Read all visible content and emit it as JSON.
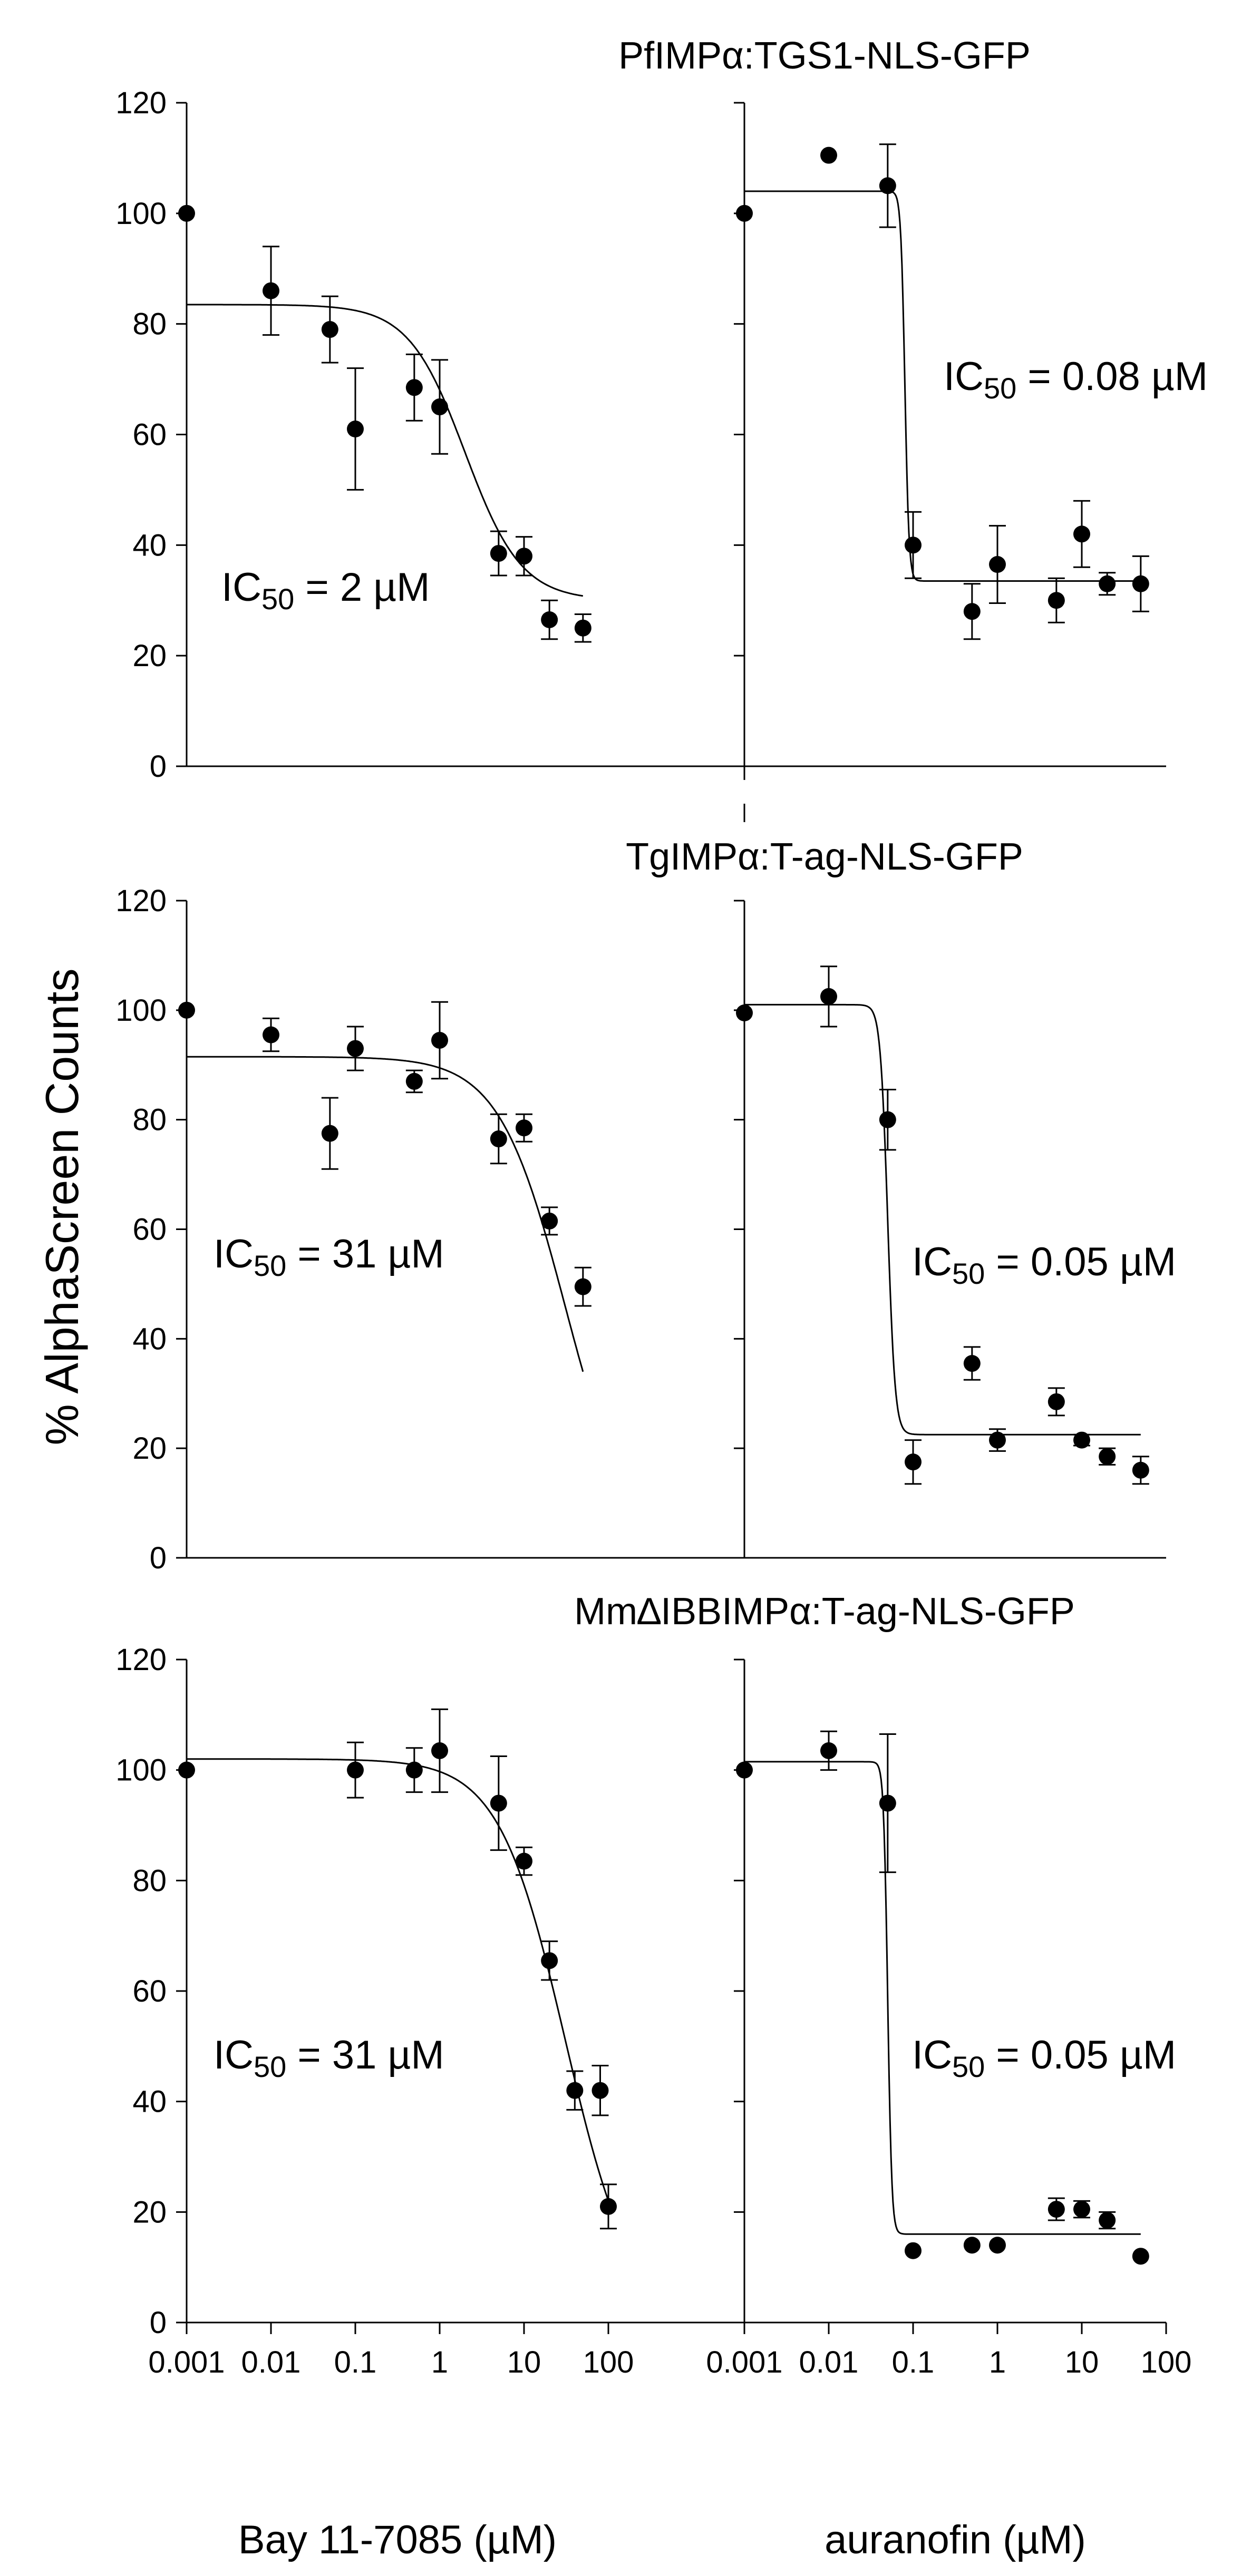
{
  "figure": {
    "y_axis_label": "% AlphaScreen Counts",
    "x_label_left": "Bay 11-7085 (µM)",
    "x_label_right": "auranofin (µM)",
    "x_tick_labels": [
      "0.001",
      "0.01",
      "0.1",
      "1",
      "10",
      "100"
    ],
    "y_tick_labels": [
      "0",
      "20",
      "40",
      "60",
      "80",
      "100",
      "120"
    ]
  },
  "chart_data": [
    {
      "type": "scatter",
      "title": "PfIMPα:TGS1-NLS-GFP",
      "xlabel": "Bay 11-7085 (µM)",
      "ylabel": "% AlphaScreen Counts",
      "xscale": "log",
      "xlim": [
        0.001,
        100
      ],
      "ylim": [
        0,
        120
      ],
      "annotation": "IC50 = 2 µM",
      "points": [
        {
          "x": 0.001,
          "y": 100
        },
        {
          "x": 0.01,
          "y": 86,
          "err": 8
        },
        {
          "x": 0.05,
          "y": 79,
          "err": 6
        },
        {
          "x": 0.1,
          "y": 61,
          "err": 11
        },
        {
          "x": 0.5,
          "y": 68.5,
          "err": 6
        },
        {
          "x": 1,
          "y": 65,
          "err": 8.5
        },
        {
          "x": 5,
          "y": 38.5,
          "err": 4
        },
        {
          "x": 10,
          "y": 38,
          "err": 3.5
        },
        {
          "x": 20,
          "y": 26.5,
          "err": 3.5
        },
        {
          "x": 50,
          "y": 25,
          "err": 2.5
        }
      ],
      "fit": {
        "top": 83.5,
        "bottom": 30,
        "ic50": 2,
        "hill": 1.3,
        "x_range": [
          0.001,
          50
        ]
      }
    },
    {
      "type": "scatter",
      "title": "",
      "xlabel": "auranofin (µM)",
      "ylabel": "% AlphaScreen Counts",
      "xscale": "log",
      "xlim": [
        0.001,
        100
      ],
      "ylim": [
        0,
        120
      ],
      "annotation": "IC50 = 0.08 µM",
      "points": [
        {
          "x": 0.001,
          "y": 100
        },
        {
          "x": 0.01,
          "y": 110.5
        },
        {
          "x": 0.05,
          "y": 105,
          "err": 7.5
        },
        {
          "x": 0.1,
          "y": 40,
          "err": 6
        },
        {
          "x": 0.5,
          "y": 28,
          "err": 5
        },
        {
          "x": 1,
          "y": 36.5,
          "err": 7
        },
        {
          "x": 5,
          "y": 30,
          "err": 4
        },
        {
          "x": 10,
          "y": 42,
          "err": 6
        },
        {
          "x": 20,
          "y": 33,
          "err": 2
        },
        {
          "x": 50,
          "y": 33,
          "err": 5
        }
      ],
      "fit": {
        "top": 104,
        "bottom": 33.5,
        "ic50": 0.08,
        "hill": 18,
        "x_range": [
          0.001,
          50
        ]
      }
    },
    {
      "type": "scatter",
      "title": "TgIMPα:T-ag-NLS-GFP",
      "xlabel": "Bay 11-7085 (µM)",
      "ylabel": "% AlphaScreen Counts",
      "xscale": "log",
      "xlim": [
        0.001,
        100
      ],
      "ylim": [
        0,
        120
      ],
      "annotation": "IC50 = 31 µM",
      "points": [
        {
          "x": 0.001,
          "y": 100
        },
        {
          "x": 0.01,
          "y": 95.5,
          "err": 3
        },
        {
          "x": 0.05,
          "y": 77.5,
          "err": 6.5
        },
        {
          "x": 0.1,
          "y": 93,
          "err": 4
        },
        {
          "x": 0.5,
          "y": 87,
          "err": 2
        },
        {
          "x": 1,
          "y": 94.5,
          "err": 7
        },
        {
          "x": 5,
          "y": 76.5,
          "err": 4.5
        },
        {
          "x": 10,
          "y": 78.5,
          "err": 2.5
        },
        {
          "x": 20,
          "y": 61.5,
          "err": 2.5
        },
        {
          "x": 50,
          "y": 49.5,
          "err": 3.5
        }
      ],
      "fit": {
        "top": 91.5,
        "bottom": 0,
        "ic50": 31,
        "hill": 1.1,
        "x_range": [
          0.001,
          50
        ]
      }
    },
    {
      "type": "scatter",
      "title": "",
      "xlabel": "auranofin (µM)",
      "ylabel": "% AlphaScreen Counts",
      "xscale": "log",
      "xlim": [
        0.001,
        100
      ],
      "ylim": [
        0,
        120
      ],
      "annotation": "IC50 = 0.05 µM",
      "points": [
        {
          "x": 0.001,
          "y": 99.5
        },
        {
          "x": 0.01,
          "y": 102.5,
          "err": 5.5
        },
        {
          "x": 0.05,
          "y": 80,
          "err": 5.5
        },
        {
          "x": 0.1,
          "y": 17.5,
          "err": 4
        },
        {
          "x": 1,
          "y": 21.5,
          "err": 2
        },
        {
          "x": 0.5,
          "y": 35.5,
          "err": 3
        },
        {
          "x": 5,
          "y": 28.5,
          "err": 2.5
        },
        {
          "x": 10,
          "y": 21.5,
          "err": 1
        },
        {
          "x": 20,
          "y": 18.5,
          "err": 1.5
        },
        {
          "x": 50,
          "y": 16,
          "err": 2.5
        }
      ],
      "fit": {
        "top": 101,
        "bottom": 22.5,
        "ic50": 0.05,
        "hill": 10,
        "x_range": [
          0.001,
          50
        ]
      }
    },
    {
      "type": "scatter",
      "title": "Mm∆IBBIMPα:T-ag-NLS-GFP",
      "xlabel": "Bay 11-7085 (µM)",
      "ylabel": "% AlphaScreen Counts",
      "xscale": "log",
      "xlim": [
        0.001,
        100
      ],
      "ylim": [
        0,
        120
      ],
      "annotation": "IC50 = 31 µM",
      "points": [
        {
          "x": 0.001,
          "y": 100
        },
        {
          "x": 0.1,
          "y": 100,
          "err": 5
        },
        {
          "x": 0.5,
          "y": 100,
          "err": 4
        },
        {
          "x": 1,
          "y": 103.5,
          "err": 7.5
        },
        {
          "x": 5,
          "y": 94,
          "err": 8.5
        },
        {
          "x": 10,
          "y": 83.5,
          "err": 2.5
        },
        {
          "x": 20,
          "y": 65.5,
          "err": 3.5
        },
        {
          "x": 40,
          "y": 42,
          "err": 3.5
        },
        {
          "x": 80,
          "y": 42,
          "err": 4.5
        },
        {
          "x": 100,
          "y": 21,
          "err": 4
        }
      ],
      "fit": {
        "top": 102,
        "bottom": 0,
        "ic50": 31,
        "hill": 1.1,
        "x_range": [
          0.001,
          100
        ]
      }
    },
    {
      "type": "scatter",
      "title": "",
      "xlabel": "auranofin (µM)",
      "ylabel": "% AlphaScreen Counts",
      "xscale": "log",
      "xlim": [
        0.001,
        100
      ],
      "ylim": [
        0,
        120
      ],
      "annotation": "IC50 = 0.05 µM",
      "points": [
        {
          "x": 0.001,
          "y": 100
        },
        {
          "x": 0.01,
          "y": 103.5,
          "err": 3.5
        },
        {
          "x": 0.05,
          "y": 94,
          "err": 12.5
        },
        {
          "x": 0.1,
          "y": 13
        },
        {
          "x": 0.5,
          "y": 14
        },
        {
          "x": 1,
          "y": 14
        },
        {
          "x": 5,
          "y": 20.5,
          "err": 2
        },
        {
          "x": 10,
          "y": 20.5,
          "err": 1.5
        },
        {
          "x": 20,
          "y": 18.5,
          "err": 1.5
        },
        {
          "x": 50,
          "y": 12
        }
      ],
      "fit": {
        "top": 101.5,
        "bottom": 16,
        "ic50": 0.05,
        "hill": 18,
        "x_range": [
          0.001,
          50
        ]
      }
    }
  ]
}
